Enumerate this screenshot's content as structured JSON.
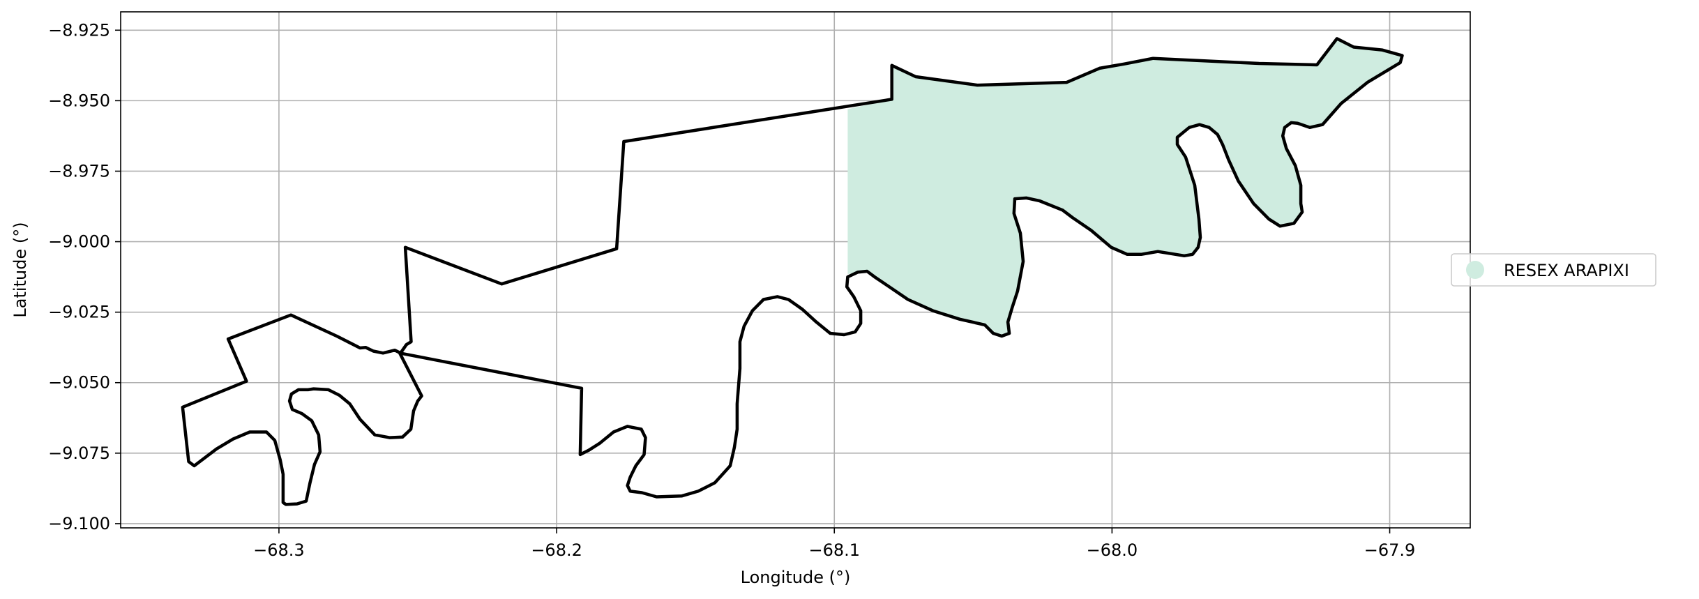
{
  "chart_data": {
    "type": "map",
    "xlabel": "Longitude (°)",
    "ylabel": "Latitude (°)",
    "xlim": [
      -68.357,
      -67.871
    ],
    "ylim": [
      -9.1015,
      -8.9185
    ],
    "x_ticks": [
      -68.3,
      -68.2,
      -68.1,
      -68.0,
      -67.9
    ],
    "x_tick_labels": [
      "−68.3",
      "−68.2",
      "−68.1",
      "−68.0",
      "−67.9"
    ],
    "y_ticks": [
      -8.925,
      -8.95,
      -8.975,
      -9.0,
      -9.025,
      -9.05,
      -9.075,
      -9.1
    ],
    "y_tick_labels": [
      "−8.925",
      "−8.950",
      "−8.975",
      "−9.000",
      "−9.025",
      "−9.050",
      "−9.075",
      "−9.100"
    ],
    "grid": true,
    "legend": {
      "placement": "right, outside plot",
      "entries": [
        {
          "label": "RESEX ARAPIXI",
          "color": "#cfece0",
          "marker": "circle"
        }
      ]
    },
    "fill_color": "#cfece0",
    "outline_color": "#000000",
    "regions": [
      {
        "name": "RESEX ARAPIXI",
        "color": "#cfece0",
        "coordinates": [
          [
            -68.0952,
            -8.953
          ],
          [
            -68.0793,
            -8.9495
          ],
          [
            -68.0793,
            -8.9375
          ],
          [
            -68.0707,
            -8.9415
          ],
          [
            -68.0485,
            -8.9445
          ],
          [
            -68.0163,
            -8.9435
          ],
          [
            -68.0045,
            -8.9385
          ],
          [
            -67.9957,
            -8.937
          ],
          [
            -67.9852,
            -8.935
          ],
          [
            -67.947,
            -8.9368
          ],
          [
            -67.9262,
            -8.9373
          ],
          [
            -67.919,
            -8.928
          ],
          [
            -67.913,
            -8.931
          ],
          [
            -67.9028,
            -8.932
          ],
          [
            -67.8955,
            -8.934
          ],
          [
            -67.8962,
            -8.9365
          ],
          [
            -67.908,
            -8.9435
          ],
          [
            -67.9175,
            -8.951
          ],
          [
            -67.9242,
            -8.9585
          ],
          [
            -67.9288,
            -8.9595
          ],
          [
            -67.9332,
            -8.958
          ],
          [
            -67.9355,
            -8.9578
          ],
          [
            -67.9378,
            -8.9595
          ],
          [
            -67.9385,
            -8.9625
          ],
          [
            -67.9372,
            -8.967
          ],
          [
            -67.934,
            -8.973
          ],
          [
            -67.932,
            -8.98
          ],
          [
            -67.932,
            -8.9865
          ],
          [
            -67.9315,
            -8.9895
          ],
          [
            -67.9345,
            -8.9935
          ],
          [
            -67.9395,
            -8.9945
          ],
          [
            -67.9435,
            -8.992
          ],
          [
            -67.949,
            -8.9865
          ],
          [
            -67.9545,
            -8.9785
          ],
          [
            -67.958,
            -8.971
          ],
          [
            -67.9602,
            -8.9655
          ],
          [
            -67.962,
            -8.962
          ],
          [
            -67.965,
            -8.9595
          ],
          [
            -67.9685,
            -8.9585
          ],
          [
            -67.9722,
            -8.9595
          ],
          [
            -67.9765,
            -8.963
          ],
          [
            -67.9765,
            -8.9655
          ],
          [
            -67.9735,
            -8.97
          ],
          [
            -67.9702,
            -8.98
          ],
          [
            -67.9687,
            -8.992
          ],
          [
            -67.9682,
            -8.9985
          ],
          [
            -67.969,
            -9.002
          ],
          [
            -67.971,
            -9.0045
          ],
          [
            -67.974,
            -9.005
          ],
          [
            -67.9835,
            -9.0035
          ],
          [
            -67.9895,
            -9.0045
          ],
          [
            -67.9945,
            -9.0045
          ],
          [
            -68.0003,
            -9.002
          ],
          [
            -68.0075,
            -8.996
          ],
          [
            -68.0142,
            -8.9915
          ],
          [
            -68.0178,
            -8.9888
          ],
          [
            -68.0262,
            -8.9855
          ],
          [
            -68.0308,
            -8.9845
          ],
          [
            -68.035,
            -8.9848
          ],
          [
            -68.0353,
            -8.99
          ],
          [
            -68.033,
            -8.997
          ],
          [
            -68.032,
            -9.007
          ],
          [
            -68.034,
            -9.0175
          ],
          [
            -68.036,
            -9.0235
          ],
          [
            -68.0375,
            -9.0285
          ],
          [
            -68.037,
            -9.0325
          ],
          [
            -68.0397,
            -9.0335
          ],
          [
            -68.0428,
            -9.0325
          ],
          [
            -68.0458,
            -9.0295
          ],
          [
            -68.0548,
            -9.0275
          ],
          [
            -68.0645,
            -9.0245
          ],
          [
            -68.0735,
            -9.0205
          ],
          [
            -68.081,
            -9.0155
          ],
          [
            -68.0855,
            -9.0125
          ],
          [
            -68.0882,
            -9.0105
          ],
          [
            -68.0915,
            -9.0108
          ],
          [
            -68.0952,
            -9.0115
          ]
        ]
      }
    ],
    "outline": [
      [
        -68.3347,
        -9.0587
      ],
      [
        -68.3117,
        -9.0495
      ],
      [
        -68.3183,
        -9.0345
      ],
      [
        -68.2957,
        -9.026
      ],
      [
        -68.2792,
        -9.0335
      ],
      [
        -68.2708,
        -9.0377
      ],
      [
        -68.2688,
        -9.0375
      ],
      [
        -68.266,
        -9.0388
      ],
      [
        -68.2625,
        -9.0395
      ],
      [
        -68.2583,
        -9.0385
      ],
      [
        -68.2562,
        -9.0395
      ],
      [
        -68.2541,
        -9.0365
      ],
      [
        -68.2524,
        -9.0355
      ],
      [
        -68.2545,
        -9.002
      ],
      [
        -68.2198,
        -9.015
      ],
      [
        -68.1784,
        -9.0025
      ],
      [
        -68.1758,
        -8.9645
      ],
      [
        -68.0793,
        -8.9495
      ],
      [
        -68.0793,
        -8.9375
      ],
      [
        -68.0707,
        -8.9415
      ],
      [
        -68.0485,
        -8.9445
      ],
      [
        -68.0163,
        -8.9435
      ],
      [
        -68.0045,
        -8.9385
      ],
      [
        -67.9957,
        -8.937
      ],
      [
        -67.9852,
        -8.935
      ],
      [
        -67.947,
        -8.9368
      ],
      [
        -67.9262,
        -8.9373
      ],
      [
        -67.919,
        -8.928
      ],
      [
        -67.913,
        -8.931
      ],
      [
        -67.9028,
        -8.932
      ],
      [
        -67.8955,
        -8.934
      ],
      [
        -67.8962,
        -8.9365
      ],
      [
        -67.908,
        -8.9435
      ],
      [
        -67.9175,
        -8.951
      ],
      [
        -67.9242,
        -8.9585
      ],
      [
        -67.9288,
        -8.9595
      ],
      [
        -67.9332,
        -8.958
      ],
      [
        -67.9355,
        -8.9578
      ],
      [
        -67.9378,
        -8.9595
      ],
      [
        -67.9385,
        -8.9625
      ],
      [
        -67.9372,
        -8.967
      ],
      [
        -67.934,
        -8.973
      ],
      [
        -67.932,
        -8.98
      ],
      [
        -67.932,
        -8.9865
      ],
      [
        -67.9315,
        -8.9895
      ],
      [
        -67.9345,
        -8.9935
      ],
      [
        -67.9395,
        -8.9945
      ],
      [
        -67.9435,
        -8.992
      ],
      [
        -67.949,
        -8.9865
      ],
      [
        -67.9545,
        -8.9785
      ],
      [
        -67.958,
        -8.971
      ],
      [
        -67.9602,
        -8.9655
      ],
      [
        -67.962,
        -8.962
      ],
      [
        -67.965,
        -8.9595
      ],
      [
        -67.9685,
        -8.9585
      ],
      [
        -67.9722,
        -8.9595
      ],
      [
        -67.9765,
        -8.963
      ],
      [
        -67.9765,
        -8.9655
      ],
      [
        -67.9735,
        -8.97
      ],
      [
        -67.9702,
        -8.98
      ],
      [
        -67.9687,
        -8.992
      ],
      [
        -67.9682,
        -8.9985
      ],
      [
        -67.969,
        -9.002
      ],
      [
        -67.971,
        -9.0045
      ],
      [
        -67.974,
        -9.005
      ],
      [
        -67.9835,
        -9.0035
      ],
      [
        -67.9895,
        -9.0045
      ],
      [
        -67.9945,
        -9.0045
      ],
      [
        -68.0003,
        -9.002
      ],
      [
        -68.0075,
        -8.996
      ],
      [
        -68.0142,
        -8.9915
      ],
      [
        -68.0178,
        -8.9888
      ],
      [
        -68.0262,
        -8.9855
      ],
      [
        -68.0308,
        -8.9845
      ],
      [
        -68.035,
        -8.9848
      ],
      [
        -68.0353,
        -8.99
      ],
      [
        -68.033,
        -8.997
      ],
      [
        -68.032,
        -9.007
      ],
      [
        -68.034,
        -9.0175
      ],
      [
        -68.036,
        -9.0235
      ],
      [
        -68.0375,
        -9.0285
      ],
      [
        -68.037,
        -9.0325
      ],
      [
        -68.0397,
        -9.0335
      ],
      [
        -68.0428,
        -9.0325
      ],
      [
        -68.0458,
        -9.0295
      ],
      [
        -68.0548,
        -9.0275
      ],
      [
        -68.0645,
        -9.0245
      ],
      [
        -68.0735,
        -9.0205
      ],
      [
        -68.081,
        -9.0155
      ],
      [
        -68.0855,
        -9.0125
      ],
      [
        -68.0882,
        -9.0105
      ],
      [
        -68.0915,
        -9.0108
      ],
      [
        -68.0952,
        -9.0125
      ],
      [
        -68.0955,
        -9.016
      ],
      [
        -68.093,
        -9.0195
      ],
      [
        -68.0905,
        -9.0245
      ],
      [
        -68.0905,
        -9.029
      ],
      [
        -68.0925,
        -9.032
      ],
      [
        -68.0965,
        -9.033
      ],
      [
        -68.1015,
        -9.0325
      ],
      [
        -68.1065,
        -9.0285
      ],
      [
        -68.1115,
        -9.024
      ],
      [
        -68.1165,
        -9.0205
      ],
      [
        -68.1205,
        -9.0195
      ],
      [
        -68.1255,
        -9.0205
      ],
      [
        -68.1295,
        -9.0245
      ],
      [
        -68.1325,
        -9.03
      ],
      [
        -68.134,
        -9.0355
      ],
      [
        -68.134,
        -9.045
      ],
      [
        -68.135,
        -9.0575
      ],
      [
        -68.135,
        -9.0665
      ],
      [
        -68.136,
        -9.073
      ],
      [
        -68.1375,
        -9.0795
      ],
      [
        -68.143,
        -9.0855
      ],
      [
        -68.149,
        -9.0885
      ],
      [
        -68.155,
        -9.0902
      ],
      [
        -68.164,
        -9.0905
      ],
      [
        -68.1693,
        -9.089
      ],
      [
        -68.1735,
        -9.0885
      ],
      [
        -68.1745,
        -9.0865
      ],
      [
        -68.1735,
        -9.0835
      ],
      [
        -68.1715,
        -9.0795
      ],
      [
        -68.1685,
        -9.0755
      ],
      [
        -68.168,
        -9.0695
      ],
      [
        -68.1695,
        -9.0665
      ],
      [
        -68.1745,
        -9.0655
      ],
      [
        -68.1795,
        -9.0675
      ],
      [
        -68.1845,
        -9.0715
      ],
      [
        -68.1885,
        -9.074
      ],
      [
        -68.1915,
        -9.0755
      ],
      [
        -68.191,
        -9.052
      ],
      [
        -68.2565,
        -9.0395
      ],
      [
        -68.2486,
        -9.0547
      ],
      [
        -68.25,
        -9.0565
      ],
      [
        -68.2515,
        -9.06
      ],
      [
        -68.2525,
        -9.0665
      ],
      [
        -68.2555,
        -9.0693
      ],
      [
        -68.2602,
        -9.0695
      ],
      [
        -68.2655,
        -9.0685
      ],
      [
        -68.2708,
        -9.063
      ],
      [
        -68.2745,
        -9.0575
      ],
      [
        -68.2782,
        -9.0545
      ],
      [
        -68.2822,
        -9.0525
      ],
      [
        -68.2875,
        -9.0522
      ],
      [
        -68.2895,
        -9.0525
      ],
      [
        -68.293,
        -9.0525
      ],
      [
        -68.2955,
        -9.054
      ],
      [
        -68.2962,
        -9.0565
      ],
      [
        -68.2952,
        -9.0595
      ],
      [
        -68.2917,
        -9.061
      ],
      [
        -68.2882,
        -9.0635
      ],
      [
        -68.2857,
        -9.0685
      ],
      [
        -68.2852,
        -9.0745
      ],
      [
        -68.2872,
        -9.079
      ],
      [
        -68.2888,
        -9.0855
      ],
      [
        -68.2902,
        -9.092
      ],
      [
        -68.2935,
        -9.093
      ],
      [
        -68.2975,
        -9.0932
      ],
      [
        -68.2985,
        -9.0925
      ],
      [
        -68.2985,
        -9.0825
      ],
      [
        -68.2995,
        -9.0775
      ],
      [
        -68.3015,
        -9.0705
      ],
      [
        -68.3045,
        -9.0675
      ],
      [
        -68.3105,
        -9.0675
      ],
      [
        -68.3165,
        -9.07
      ],
      [
        -68.3225,
        -9.0735
      ],
      [
        -68.3265,
        -9.0765
      ],
      [
        -68.3305,
        -9.0795
      ],
      [
        -68.3325,
        -9.078
      ],
      [
        -68.3347,
        -9.0587
      ]
    ]
  }
}
